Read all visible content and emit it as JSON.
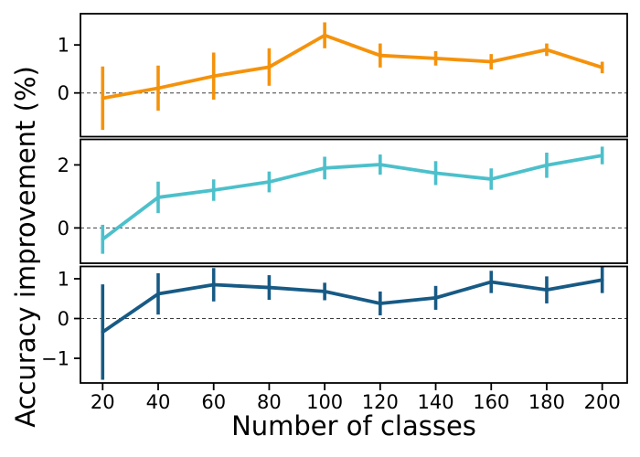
{
  "chart_data": {
    "type": "line",
    "title": "",
    "xlabel": "Number of classes",
    "ylabel": "Accuracy improvement (%)",
    "layout": "three vertically stacked subplots sharing one x-axis",
    "grid": false,
    "legend": "none",
    "zero_reference_line": "black dashed horizontal line at y=0 in each subplot",
    "x": [
      20,
      40,
      60,
      80,
      100,
      120,
      140,
      160,
      180,
      200
    ],
    "x_tick_labels": [
      "20",
      "40",
      "60",
      "80",
      "100",
      "120",
      "140",
      "160",
      "180",
      "200"
    ],
    "xlim": [
      12,
      209
    ],
    "subplots": [
      {
        "position": "top",
        "series_name": "orange-series",
        "color": "#F5920B",
        "values": [
          -0.11,
          0.1,
          0.35,
          0.54,
          1.2,
          0.78,
          0.72,
          0.65,
          0.9,
          0.53
        ],
        "errors": [
          0.66,
          0.47,
          0.49,
          0.39,
          0.27,
          0.25,
          0.15,
          0.16,
          0.13,
          0.12
        ],
        "yticks": [
          0,
          1
        ],
        "ylim": [
          -0.91,
          1.65
        ]
      },
      {
        "position": "middle",
        "series_name": "cyan-series",
        "color": "#4CC0CB",
        "values": [
          -0.36,
          0.97,
          1.2,
          1.46,
          1.9,
          2.01,
          1.74,
          1.55,
          1.99,
          2.3
        ],
        "errors": [
          0.46,
          0.5,
          0.34,
          0.33,
          0.36,
          0.32,
          0.38,
          0.34,
          0.4,
          0.28
        ],
        "yticks": [
          0,
          2
        ],
        "ylim": [
          -1.12,
          2.81
        ]
      },
      {
        "position": "bottom",
        "series_name": "dark-blue-series",
        "color": "#175A85",
        "values": [
          -0.34,
          0.62,
          0.85,
          0.78,
          0.68,
          0.38,
          0.52,
          0.92,
          0.72,
          0.97
        ],
        "errors": [
          1.2,
          0.52,
          0.42,
          0.31,
          0.22,
          0.3,
          0.3,
          0.28,
          0.34,
          0.33
        ],
        "yticks": [
          -1,
          0,
          1
        ],
        "ylim": [
          -1.62,
          1.31
        ]
      }
    ]
  }
}
